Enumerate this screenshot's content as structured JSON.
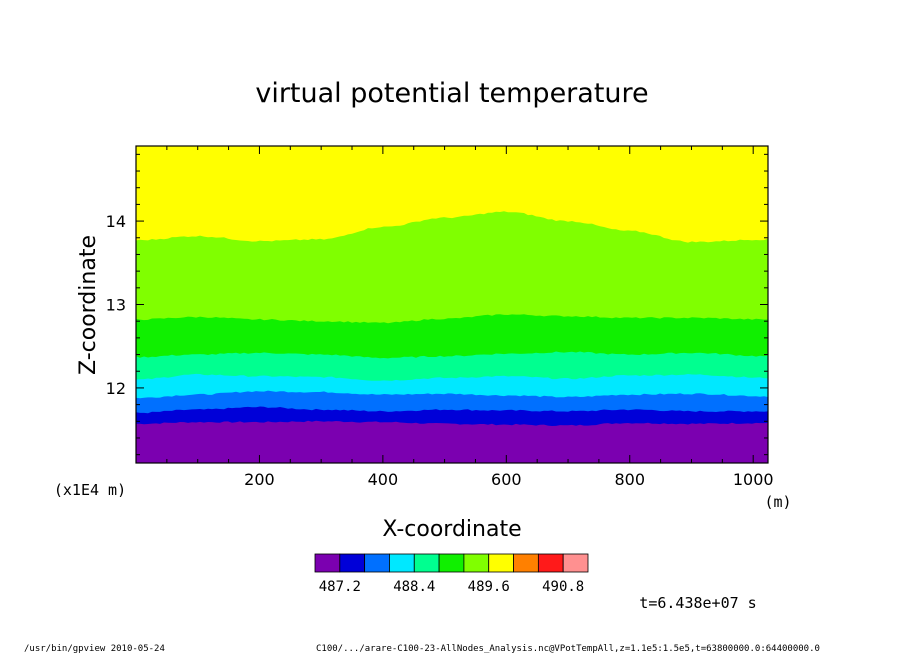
{
  "chart_data": {
    "type": "heatmap",
    "title": "virtual potential temperature",
    "xlabel": "X-coordinate",
    "ylabel": "Z-coordinate",
    "x_unit": "(m)",
    "y_unit": "(x1E4 m)",
    "xlim": [
      0,
      1024
    ],
    "ylim": [
      11.1,
      14.9
    ],
    "x_ticks": [
      200,
      400,
      600,
      800,
      1000
    ],
    "x_tick_labels": [
      "200",
      "400",
      "600",
      "800",
      "1000"
    ],
    "y_ticks": [
      12,
      13,
      14
    ],
    "y_tick_labels": [
      "12",
      "13",
      "14"
    ],
    "levels_colors": [
      "#7b00b0",
      "#0000d8",
      "#0070ff",
      "#00e8ff",
      "#00ff90",
      "#10f000",
      "#80ff00",
      "#ffff00",
      "#ff8000",
      "#ff1a1a",
      "#ff9090"
    ],
    "colorbar_labels": [
      "487.2",
      "488.4",
      "489.6",
      "490.8"
    ],
    "time_label": "t=6.438e+07 s",
    "band_boundaries": [
      {
        "x": [
          0,
          100,
          200,
          300,
          400,
          500,
          600,
          700,
          800,
          900,
          1024
        ],
        "y": [
          11.57,
          11.59,
          11.59,
          11.6,
          11.59,
          11.57,
          11.56,
          11.55,
          11.58,
          11.57,
          11.58
        ]
      },
      {
        "x": [
          0,
          100,
          200,
          300,
          400,
          500,
          600,
          700,
          800,
          900,
          1024
        ],
        "y": [
          11.7,
          11.74,
          11.77,
          11.74,
          11.72,
          11.74,
          11.73,
          11.72,
          11.74,
          11.72,
          11.72
        ]
      },
      {
        "x": [
          0,
          100,
          200,
          300,
          400,
          500,
          600,
          700,
          800,
          900,
          1024
        ],
        "y": [
          11.88,
          11.92,
          11.96,
          11.95,
          11.92,
          11.93,
          11.91,
          11.89,
          11.92,
          11.93,
          11.9
        ]
      },
      {
        "x": [
          0,
          100,
          200,
          300,
          400,
          500,
          600,
          700,
          800,
          900,
          1024
        ],
        "y": [
          12.1,
          12.16,
          12.14,
          12.13,
          12.09,
          12.12,
          12.14,
          12.11,
          12.15,
          12.16,
          12.12
        ]
      },
      {
        "x": [
          0,
          100,
          200,
          300,
          400,
          500,
          600,
          700,
          800,
          900,
          1024
        ],
        "y": [
          12.37,
          12.4,
          12.42,
          12.4,
          12.36,
          12.38,
          12.41,
          12.43,
          12.4,
          12.42,
          12.38
        ]
      },
      {
        "x": [
          0,
          100,
          200,
          300,
          400,
          500,
          600,
          700,
          800,
          900,
          1024
        ],
        "y": [
          12.82,
          12.85,
          12.82,
          12.8,
          12.78,
          12.83,
          12.88,
          12.86,
          12.84,
          12.84,
          12.82
        ]
      },
      {
        "x": [
          0,
          100,
          200,
          300,
          400,
          500,
          600,
          700,
          800,
          900,
          1024
        ],
        "y": [
          13.77,
          13.82,
          13.76,
          13.78,
          13.93,
          14.04,
          14.11,
          14.0,
          13.88,
          13.75,
          13.78
        ]
      }
    ]
  },
  "footer": {
    "program": "/usr/bin/gpview  2010-05-24",
    "file_info": "C100/.../arare-C100-23-AllNodes_Analysis.nc@VPotTempAll,z=1.1e5:1.5e5,t=63800000.0:64400000.0"
  }
}
